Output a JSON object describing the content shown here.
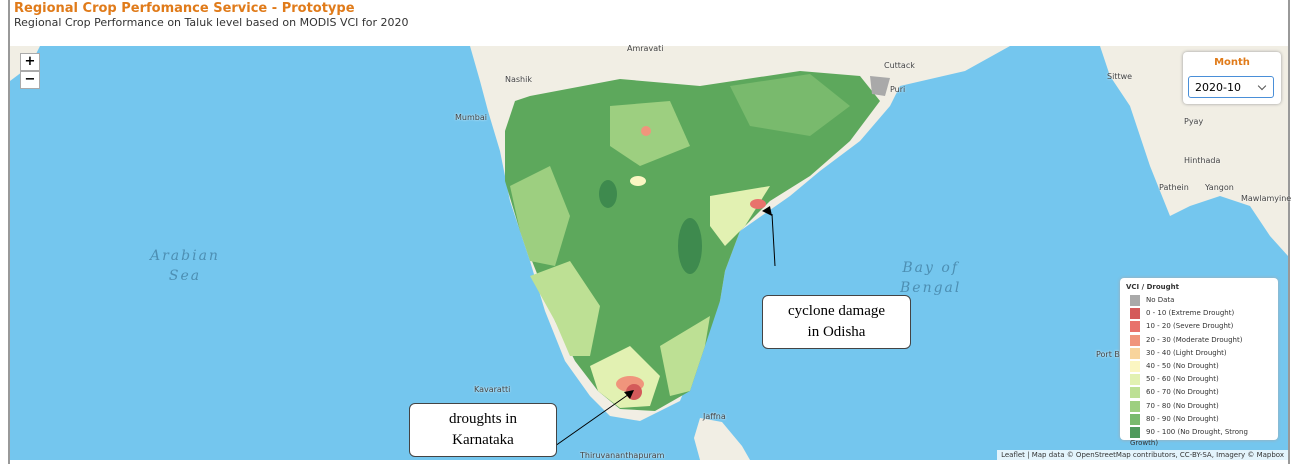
{
  "header": {
    "title": "Regional Crop Perfomance Service - Prototype",
    "subtitle": "Regional Crop Performance on Taluk level based on MODIS VCI for 2020"
  },
  "zoom": {
    "in": "+",
    "out": "−"
  },
  "month_control": {
    "label": "Month",
    "value": "2020-10"
  },
  "places": [
    {
      "name": "Amravati"
    },
    {
      "name": "Nashik"
    },
    {
      "name": "Mumbai"
    },
    {
      "name": "Cuttack"
    },
    {
      "name": "Puri"
    },
    {
      "name": "Jaffna"
    },
    {
      "name": "Thiruvananthapuram"
    },
    {
      "name": "Kavaratti"
    },
    {
      "name": "Port Bl"
    },
    {
      "name": "Sittwe"
    },
    {
      "name": "Pyay"
    },
    {
      "name": "Hinthada"
    },
    {
      "name": "Pathein"
    },
    {
      "name": "Yangon"
    },
    {
      "name": "Mawlamyine"
    }
  ],
  "seas": [
    {
      "lines": [
        "Arabian",
        "Sea"
      ]
    },
    {
      "lines": [
        "Bay of",
        "Bengal"
      ]
    }
  ],
  "legend": {
    "title": "VCI / Drought",
    "items": [
      {
        "label": "No Data",
        "color": "#a9a9a9"
      },
      {
        "label": "0 - 10 (Extreme Drought)",
        "color": "#d45a5a"
      },
      {
        "label": "10 - 20 (Severe Drought)",
        "color": "#e8726c"
      },
      {
        "label": "20 - 30 (Moderate Drought)",
        "color": "#f0957c"
      },
      {
        "label": "30 - 40 (Light Drought)",
        "color": "#f8d49c"
      },
      {
        "label": "40 - 50 (No Drought)",
        "color": "#fbf6c2"
      },
      {
        "label": "50 - 60 (No Drought)",
        "color": "#e2f1b2"
      },
      {
        "label": "60 - 70 (No Drought)",
        "color": "#bde094"
      },
      {
        "label": "70 - 80 (No Drought)",
        "color": "#9dcf80"
      },
      {
        "label": "80 - 90 (No Drought)",
        "color": "#79ba6d"
      },
      {
        "label": "90 - 100 (No Drought, Strong Growth)",
        "color": "#4f9a5c"
      }
    ]
  },
  "annotations": [
    {
      "lines": [
        "cyclone damage",
        "in Odisha"
      ]
    },
    {
      "lines": [
        "droughts in",
        "Karnataka"
      ]
    }
  ],
  "attribution": "Leaflet | Map data © OpenStreetMap contributors, CC-BY-SA, Imagery © Mapbox"
}
